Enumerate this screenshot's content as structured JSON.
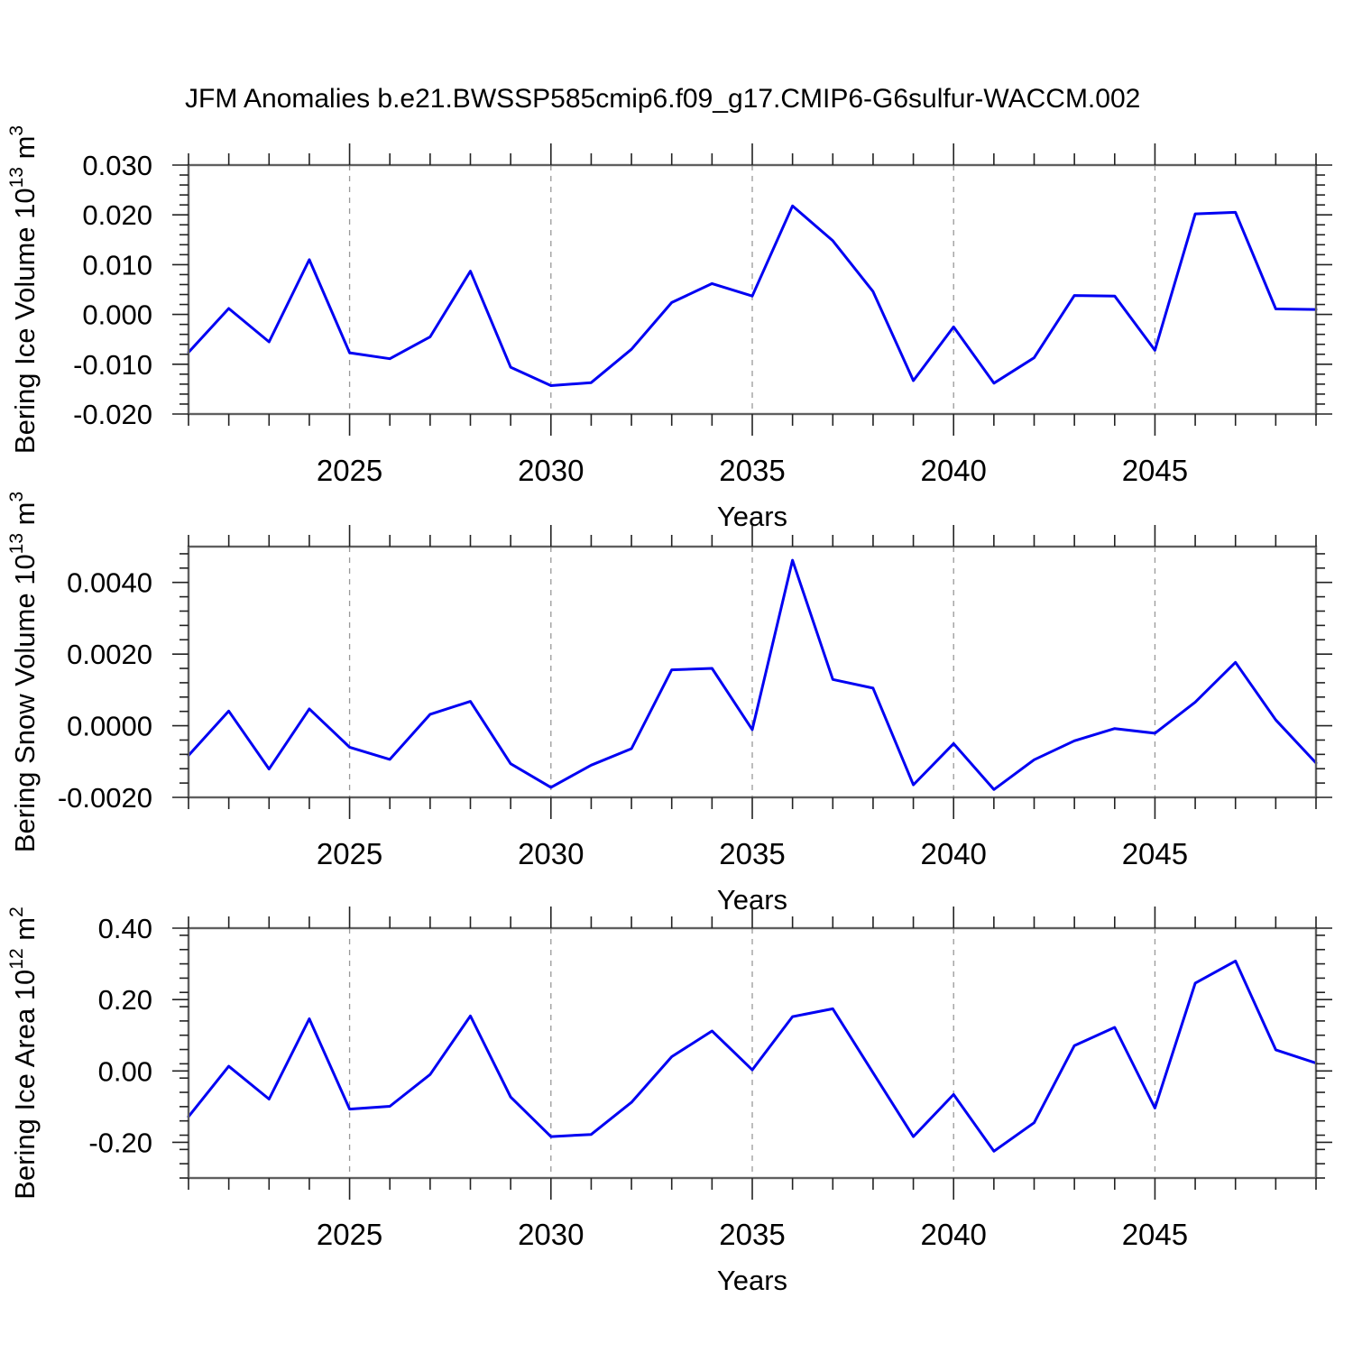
{
  "title": "JFM Anomalies b.e21.BWSSP585cmip6.f09_g17.CMIP6-G6sulfur-WACCM.002",
  "style": {
    "line_color": "#0000f2",
    "grid_color": "#999999",
    "axis_color": "#5f5f5f",
    "tick_color": "#222222",
    "text_color": "#000000"
  },
  "chart_data": [
    {
      "id": "bering-ice-volume-chart",
      "type": "line",
      "ylabel": "Bering Ice Volume 10^13 m^3",
      "ylabel_parts": [
        {
          "text": "Bering Ice Volume 10",
          "sup": false
        },
        {
          "text": "13",
          "sup": true
        },
        {
          "text": " m",
          "sup": false
        },
        {
          "text": "3",
          "sup": true
        }
      ],
      "xlabel": "Years",
      "xlim": [
        2021,
        2049
      ],
      "ylim": [
        -0.02,
        0.03
      ],
      "ytick_values": [
        0.03,
        0.02,
        0.01,
        0.0,
        -0.01,
        -0.02
      ],
      "ytick_labels": [
        "0.030",
        "0.020",
        "0.010",
        "0.000",
        "-0.010",
        "-0.020"
      ],
      "y_minor_step": 0.002,
      "x_major_ticks": [
        2025,
        2030,
        2035,
        2040,
        2045
      ],
      "x_major_labels": [
        "2025",
        "2030",
        "2035",
        "2040",
        "2045"
      ],
      "grid": "x-dashed",
      "legend": "none",
      "x": [
        2021,
        2022,
        2023,
        2024,
        2025,
        2026,
        2027,
        2028,
        2029,
        2030,
        2031,
        2032,
        2033,
        2034,
        2035,
        2036,
        2037,
        2038,
        2039,
        2040,
        2041,
        2042,
        2043,
        2044,
        2045,
        2046,
        2047,
        2048,
        2049
      ],
      "values": [
        -0.0076,
        0.0012,
        -0.0055,
        0.011,
        -0.0077,
        -0.0089,
        -0.0045,
        0.0087,
        -0.0106,
        -0.0143,
        -0.0137,
        -0.007,
        0.0024,
        0.0062,
        0.0037,
        0.0218,
        0.0148,
        0.0046,
        -0.0133,
        -0.0025,
        -0.0138,
        -0.0087,
        0.0038,
        0.0037,
        -0.0072,
        0.0202,
        0.0205,
        0.0011,
        0.001
      ]
    },
    {
      "id": "bering-snow-volume-chart",
      "type": "line",
      "ylabel": "Bering Snow Volume 10^13 m^3",
      "ylabel_parts": [
        {
          "text": "Bering Snow Volume 10",
          "sup": false
        },
        {
          "text": "13",
          "sup": true
        },
        {
          "text": " m",
          "sup": false
        },
        {
          "text": "3",
          "sup": true
        }
      ],
      "xlabel": "Years",
      "xlim": [
        2021,
        2049
      ],
      "ylim": [
        -0.002,
        0.005
      ],
      "ytick_values": [
        0.004,
        0.002,
        0.0,
        -0.002
      ],
      "ytick_labels": [
        "0.0040",
        "0.0020",
        "0.0000",
        "-0.0020"
      ],
      "y_minor_step": 0.0004,
      "x_major_ticks": [
        2025,
        2030,
        2035,
        2040,
        2045
      ],
      "x_major_labels": [
        "2025",
        "2030",
        "2035",
        "2040",
        "2045"
      ],
      "grid": "x-dashed",
      "legend": "none",
      "x": [
        2021,
        2022,
        2023,
        2024,
        2025,
        2026,
        2027,
        2028,
        2029,
        2030,
        2031,
        2032,
        2033,
        2034,
        2035,
        2036,
        2037,
        2038,
        2039,
        2040,
        2041,
        2042,
        2043,
        2044,
        2045,
        2046,
        2047,
        2048,
        2049
      ],
      "values": [
        -0.00083,
        0.00041,
        -0.00121,
        0.00047,
        -0.0006,
        -0.00094,
        0.00032,
        0.00068,
        -0.00106,
        -0.00172,
        -0.0011,
        -0.00064,
        0.00156,
        0.0016,
        -0.00011,
        0.00462,
        0.00129,
        0.00105,
        -0.00165,
        -0.0005,
        -0.00178,
        -0.00095,
        -0.00042,
        -8e-05,
        -0.00021,
        0.00066,
        0.00177,
        0.00016,
        -0.00104
      ]
    },
    {
      "id": "bering-ice-area-chart",
      "type": "line",
      "ylabel": "Bering Ice Area 10^12 m^2",
      "ylabel_parts": [
        {
          "text": "Bering Ice Area 10",
          "sup": false
        },
        {
          "text": "12",
          "sup": true
        },
        {
          "text": " m",
          "sup": false
        },
        {
          "text": "2",
          "sup": true
        }
      ],
      "xlabel": "Years",
      "xlim": [
        2021,
        2049
      ],
      "ylim": [
        -0.3,
        0.4
      ],
      "ytick_values": [
        0.4,
        0.2,
        0.0,
        -0.2
      ],
      "ytick_labels": [
        "0.40",
        "0.20",
        "0.00",
        "-0.20"
      ],
      "y_minor_step": 0.04,
      "x_major_ticks": [
        2025,
        2030,
        2035,
        2040,
        2045
      ],
      "x_major_labels": [
        "2025",
        "2030",
        "2035",
        "2040",
        "2045"
      ],
      "grid": "x-dashed",
      "legend": "none",
      "x": [
        2021,
        2022,
        2023,
        2024,
        2025,
        2026,
        2027,
        2028,
        2029,
        2030,
        2031,
        2032,
        2033,
        2034,
        2035,
        2036,
        2037,
        2038,
        2039,
        2040,
        2041,
        2042,
        2043,
        2044,
        2045,
        2046,
        2047,
        2048,
        2049
      ],
      "values": [
        -0.128,
        0.013,
        -0.079,
        0.146,
        -0.107,
        -0.099,
        -0.01,
        0.154,
        -0.073,
        -0.184,
        -0.178,
        -0.088,
        0.04,
        0.112,
        0.003,
        0.152,
        0.174,
        -0.005,
        -0.184,
        -0.066,
        -0.225,
        -0.145,
        0.071,
        0.122,
        -0.104,
        0.246,
        0.308,
        0.059,
        0.022
      ]
    }
  ]
}
